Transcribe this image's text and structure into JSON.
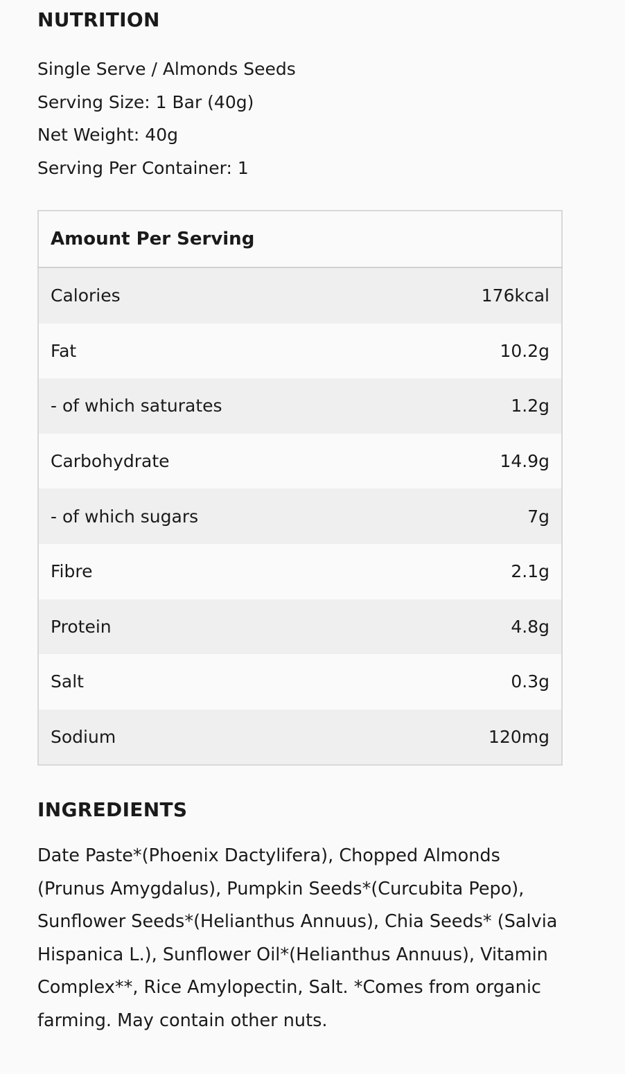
{
  "nutrition": {
    "title": "NUTRITION",
    "details": [
      "Single Serve / Almonds Seeds",
      "Serving Size: 1 Bar (40g)",
      "Net Weight: 40g",
      "Serving Per Container: 1"
    ],
    "table": {
      "header": "Amount Per Serving",
      "rows": [
        [
          "Calories",
          "176kcal"
        ],
        [
          "Fat",
          "10.2g"
        ],
        [
          "- of which saturates",
          "1.2g"
        ],
        [
          "Carbohydrate",
          "14.9g"
        ],
        [
          "- of which sugars",
          "7g"
        ],
        [
          "Fibre",
          "2.1g"
        ],
        [
          "Protein",
          "4.8g"
        ],
        [
          "Salt",
          "0.3g"
        ],
        [
          "Sodium",
          "120mg"
        ]
      ]
    }
  },
  "ingredients": {
    "title": "INGREDIENTS",
    "text": "Date Paste*(Phoenix Dactylifera), Chopped Almonds (Prunus Amygdalus), Pumpkin Seeds*(Curcubita Pepo), Sunflower Seeds*(Helianthus Annuus), Chia Seeds* (Salvia Hispanica L.), Sunflower Oil*(Helianthus Annuus), Vitamin Complex**, Rice Amylopectin, Salt. *Comes from organic farming. May contain other nuts."
  }
}
